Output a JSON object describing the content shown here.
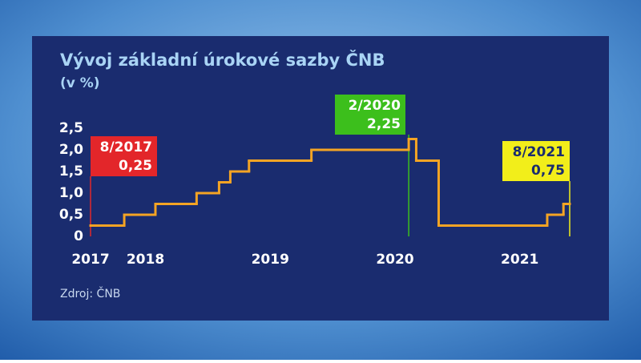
{
  "chart_data": {
    "type": "step",
    "title": "Vývoj základní úrokové sazby ČNB",
    "subtitle": "(v %)",
    "source": "Zdroj: ČNB",
    "color": "#f4a424",
    "x": [
      2017.56,
      2017.83,
      2018.08,
      2018.41,
      2018.59,
      2018.68,
      2018.83,
      2019.33,
      2020.11,
      2020.17,
      2020.35,
      2021.22,
      2021.35
    ],
    "values": [
      0.25,
      0.5,
      0.75,
      1.0,
      1.25,
      1.5,
      1.75,
      2.0,
      2.25,
      1.75,
      0.25,
      0.5,
      0.75
    ],
    "xlim": [
      2017.56,
      2021.4
    ],
    "ylim": [
      0,
      2.5
    ],
    "xticks": [
      {
        "value": 2017.56,
        "label": "2017"
      },
      2018,
      2019,
      2020,
      2021
    ],
    "yticks": [
      0,
      {
        "value": 0.5,
        "label": "0,5"
      },
      {
        "value": 1.0,
        "label": "1,0"
      },
      {
        "value": 1.5,
        "label": "1,5"
      },
      {
        "value": 2.0,
        "label": "2,0"
      },
      {
        "value": 2.5,
        "label": "2,5"
      }
    ],
    "annotations": [
      {
        "label": "8/2017",
        "value": 0.25,
        "value_label": "0,25",
        "x": 2017.56,
        "color": "#e3262a"
      },
      {
        "label": "2/2020",
        "value": 2.25,
        "value_label": "2,25",
        "x": 2020.11,
        "color": "#3cbf1c"
      },
      {
        "label": "8/2021",
        "value": 0.75,
        "value_label": "0,75",
        "x": 2021.4,
        "color": "#f2ee1a"
      }
    ]
  }
}
